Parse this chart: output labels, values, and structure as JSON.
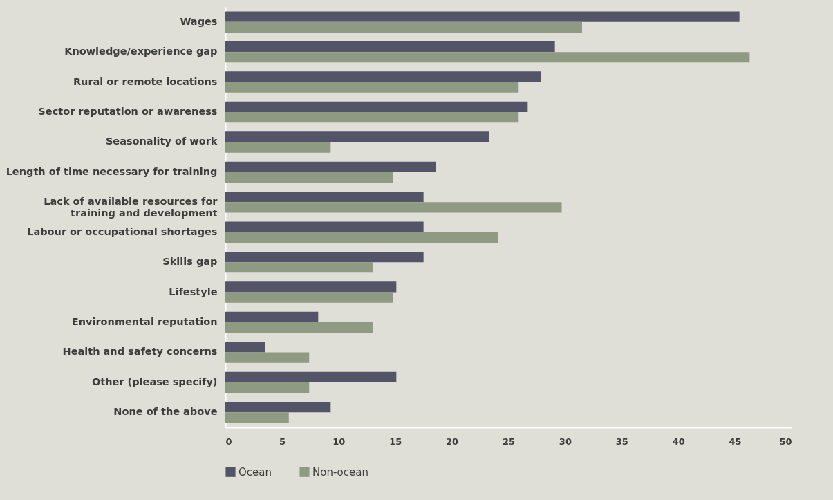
{
  "chart_data": {
    "type": "bar",
    "orientation": "horizontal",
    "categories": [
      "Wages",
      "Knowledge/experience gap",
      "Rural or remote locations",
      "Sector reputation or awareness",
      "Seasonality of work",
      "Length of time necessary for training",
      "Lack of available resources for\ntraining and development",
      "Labour or occupational shortages",
      "Skills gap",
      "Lifestyle",
      "Environmental reputation",
      "Health and safety concerns",
      "Other (please specify)",
      "None of the above"
    ],
    "series": [
      {
        "name": "Ocean",
        "color": "#545468",
        "values": [
          45.4,
          29.1,
          27.9,
          26.7,
          23.3,
          18.6,
          17.5,
          17.5,
          17.5,
          15.1,
          8.2,
          3.5,
          15.1,
          9.3
        ]
      },
      {
        "name": "Non-ocean",
        "color": "#8f9a82",
        "values": [
          31.5,
          46.3,
          25.9,
          25.9,
          9.3,
          14.8,
          29.7,
          24.1,
          13.0,
          14.8,
          13.0,
          7.4,
          7.4,
          5.6
        ]
      }
    ],
    "xlim": [
      0,
      50
    ],
    "xticks": [
      0,
      5,
      10,
      15,
      20,
      25,
      30,
      35,
      40,
      45,
      50
    ],
    "grid": false,
    "legend": "bottom"
  }
}
